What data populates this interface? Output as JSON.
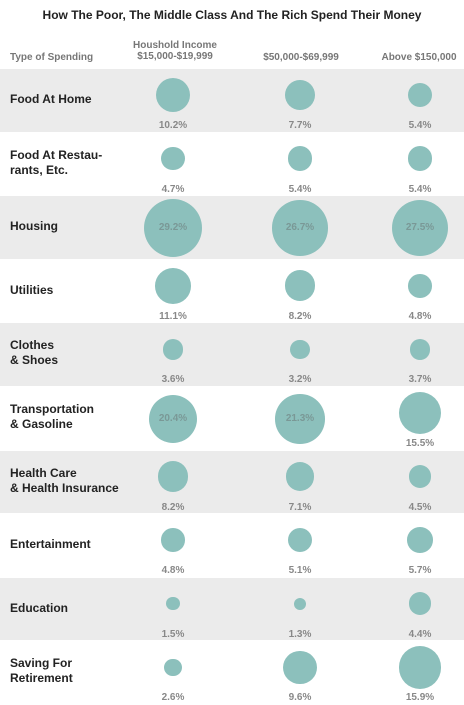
{
  "chart_data": {
    "type": "table",
    "title": "How The Poor, The Middle Class And The Rich Spend Their Money",
    "row_header": "Type of Spending",
    "columns": [
      "Houshold Income\n$15,000-$19,999",
      "$50,000-$69,999",
      "Above $150,000"
    ],
    "unit": "%",
    "colors": {
      "bubble": "#8cc0bc",
      "row_shade": "#ebebeb",
      "value_text": "#888888"
    },
    "rows": [
      {
        "category": "Food At Home",
        "values": [
          10.2,
          7.7,
          5.4
        ]
      },
      {
        "category": "Food At Restau-\nrants, Etc.",
        "values": [
          4.7,
          5.4,
          5.4
        ]
      },
      {
        "category": "Housing",
        "values": [
          29.2,
          26.7,
          27.5
        ]
      },
      {
        "category": "Utilities",
        "values": [
          11.1,
          8.2,
          4.8
        ]
      },
      {
        "category": "Clothes\n& Shoes",
        "values": [
          3.6,
          3.2,
          3.7
        ]
      },
      {
        "category": "Transportation\n& Gasoline",
        "values": [
          20.4,
          21.3,
          15.5
        ]
      },
      {
        "category": "Health Care\n& Health Insurance",
        "values": [
          8.2,
          7.1,
          4.5
        ]
      },
      {
        "category": "Entertainment",
        "values": [
          4.8,
          5.1,
          5.7
        ]
      },
      {
        "category": "Education",
        "values": [
          1.5,
          1.3,
          4.4
        ]
      },
      {
        "category": "Saving For\nRetirement",
        "values": [
          2.6,
          9.6,
          15.9
        ]
      }
    ]
  }
}
